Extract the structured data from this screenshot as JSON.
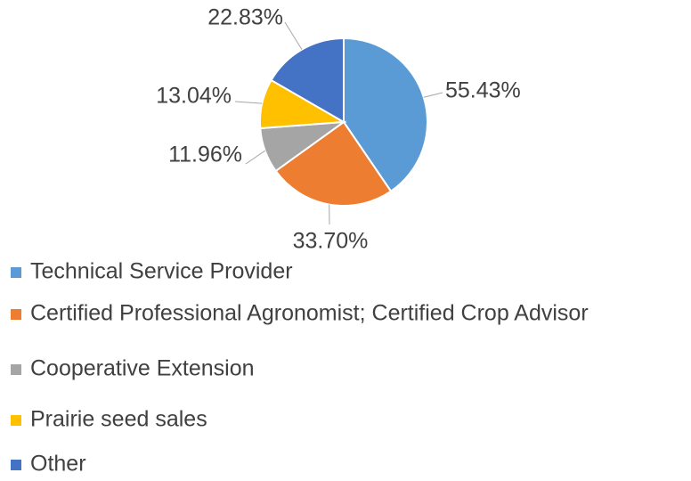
{
  "chart_data": {
    "type": "pie",
    "categories": [
      "Technical Service Provider",
      "Certified Professional Agronomist; Certified Crop Advisor",
      "Cooperative Extension",
      "Prairie seed sales",
      "Other"
    ],
    "values": [
      55.43,
      33.7,
      11.96,
      13.04,
      22.83
    ],
    "value_labels": [
      "55.43%",
      "33.70%",
      "11.96%",
      "13.04%",
      "22.83%"
    ],
    "colors": [
      "#5b9bd5",
      "#ed7d31",
      "#a5a5a5",
      "#ffc000",
      "#4472c4"
    ],
    "legend": "bottom"
  }
}
